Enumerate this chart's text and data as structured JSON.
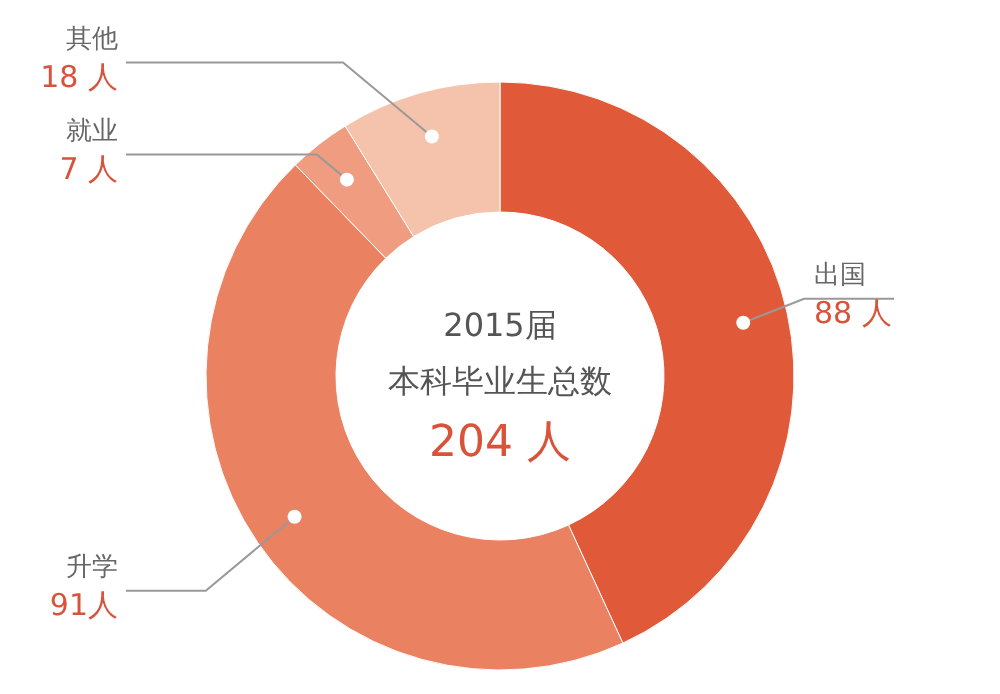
{
  "chart_data": {
    "type": "donut",
    "title": "2015届",
    "subtitle": "本科毕业生总数",
    "annotations": [
      "204 人"
    ],
    "categories": [
      "出国",
      "升学",
      "就业",
      "其他"
    ],
    "values": [
      88,
      91,
      7,
      18
    ],
    "colors": [
      "#e05a3a",
      "#ea8262",
      "#f09c80",
      "#f5c2ac"
    ],
    "value_labels": [
      "88 人",
      "91人",
      "7 人",
      "18 人"
    ]
  }
}
